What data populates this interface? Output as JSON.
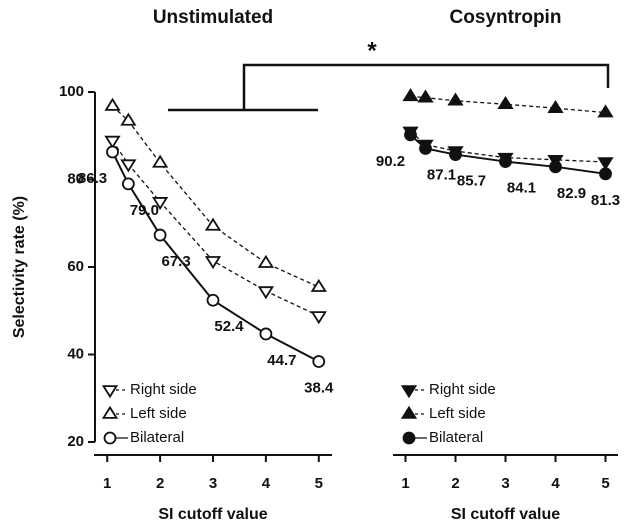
{
  "annotation": "*",
  "chart_data": [
    {
      "type": "line",
      "title": "Unstimulated",
      "xlabel": "SI cutoff value",
      "ylabel": "Selectivity rate (%)",
      "xlim": [
        0.75,
        5.25
      ],
      "xticks": [
        1,
        2,
        3,
        4,
        5
      ],
      "ylim": [
        20,
        100
      ],
      "yticks": [
        20,
        40,
        60,
        80,
        100
      ],
      "legend": "lower left",
      "x": [
        1.1,
        1.4,
        2,
        3,
        4,
        5
      ],
      "series": [
        {
          "name": "Right side",
          "color": "#111111",
          "marker": "triangle-down",
          "filled": false,
          "dashed": true,
          "values": [
            88.9,
            83.5,
            74.9,
            61.4,
            54.5,
            48.8
          ]
        },
        {
          "name": "Left side",
          "color": "#111111",
          "marker": "triangle-up",
          "filled": false,
          "dashed": true,
          "values": [
            96.8,
            93.4,
            83.8,
            69.4,
            60.9,
            55.4
          ]
        },
        {
          "name": "Bilateral",
          "color": "#111111",
          "marker": "circle",
          "filled": false,
          "dashed": false,
          "values": [
            86.3,
            79.0,
            67.3,
            52.4,
            44.7,
            38.4
          ],
          "value_labels": [
            "86.3",
            "79.0",
            "67.3",
            "52.4",
            "44.7",
            "38.4"
          ]
        }
      ]
    },
    {
      "type": "line",
      "title": "Cosyntropin",
      "xlabel": "SI cutoff value",
      "xlim": [
        0.75,
        5.25
      ],
      "xticks": [
        1,
        2,
        3,
        4,
        5
      ],
      "ylim": [
        20,
        100
      ],
      "legend": "lower left",
      "x": [
        1.1,
        1.4,
        2,
        3,
        4,
        5
      ],
      "series": [
        {
          "name": "Right  side",
          "color": "#111111",
          "marker": "triangle-down",
          "filled": true,
          "dashed": true,
          "values": [
            91.0,
            88.0,
            86.5,
            85.0,
            84.5,
            84.0
          ]
        },
        {
          "name": "Left side",
          "color": "#111111",
          "marker": "triangle-up",
          "filled": true,
          "dashed": true,
          "values": [
            99.0,
            98.7,
            98.0,
            97.2,
            96.3,
            95.3
          ]
        },
        {
          "name": "Bilateral",
          "color": "#111111",
          "marker": "circle",
          "filled": true,
          "dashed": false,
          "values": [
            90.2,
            87.1,
            85.7,
            84.1,
            82.9,
            81.3
          ],
          "value_labels": [
            "90.2",
            "87.1",
            "85.7",
            "84.1",
            "82.9",
            "81.3"
          ]
        }
      ]
    }
  ]
}
